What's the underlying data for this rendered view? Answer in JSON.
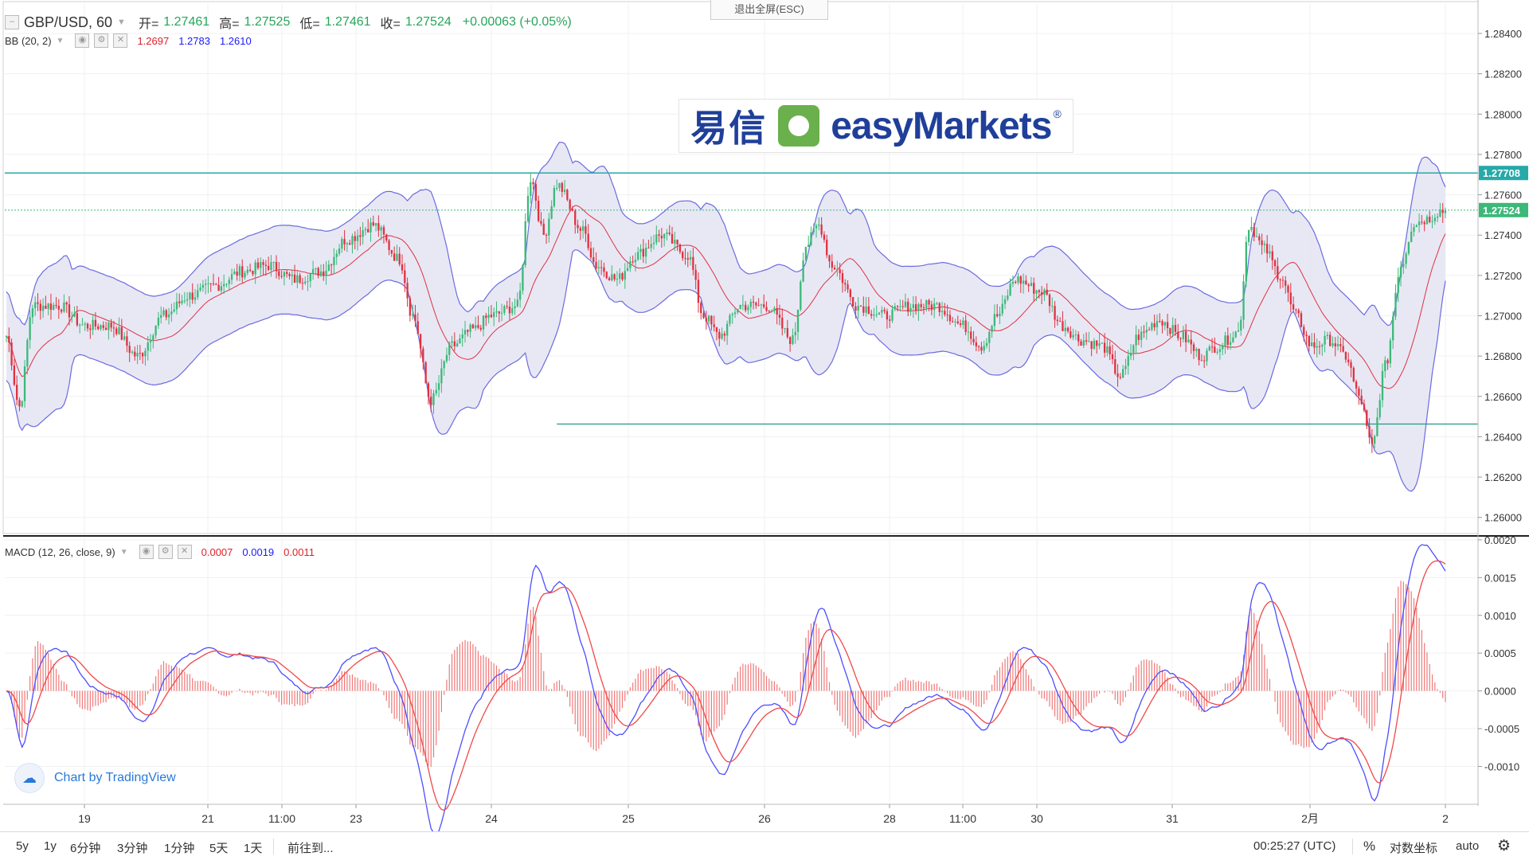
{
  "header": {
    "symbol": "GBP/USD, 60",
    "open_label": "开=",
    "open_value": "1.27461",
    "high_label": "高=",
    "high_value": "1.27525",
    "low_label": "低=",
    "low_value": "1.27461",
    "close_label": "收=",
    "close_value": "1.27524",
    "change": "+0.00063 (+0.05%)",
    "fullscreen_exit": "退出全屏(ESC)"
  },
  "bb_legend": {
    "label": "BB (20, 2)",
    "middle": "1.2697",
    "upper": "1.2783",
    "lower": "1.2610"
  },
  "macd_legend": {
    "label": "MACD (12, 26, close, 9)",
    "histogram": "0.0007",
    "macd": "0.0019",
    "signal": "0.0011"
  },
  "logo": {
    "chinese": "易信",
    "english": "easyMarkets",
    "registered": "®"
  },
  "tradingview": {
    "text": "Chart by TradingView"
  },
  "price_labels": {
    "resistance": "1.27708",
    "current": "1.27524"
  },
  "bottom_bar": {
    "timeframes": [
      "5y",
      "1y",
      "6分钟",
      "3分钟",
      "1分钟",
      "5天",
      "1天"
    ],
    "goto": "前往到...",
    "clock": "00:25:27 (UTC)",
    "percent": "%",
    "log": "对数坐标",
    "auto": "auto",
    "settings_icon": "gear-icon"
  },
  "colors": {
    "up": "#3cb878",
    "down": "#e0313f",
    "bb_band": "#6b6be0",
    "bb_fill": "#e4e4f3",
    "bb_mid": "#e0313f",
    "macd_line": "#4d4dff",
    "signal_line": "#f04848",
    "hist": "#f07878",
    "hline": "#26a9a9"
  },
  "chart_data": [
    {
      "type": "candlestick",
      "series": [
        {
          "name": "GBP/USD"
        }
      ],
      "x_ticks": [
        "19",
        "21",
        "11:00",
        "23",
        "24",
        "25",
        "26",
        "28",
        "11:00",
        "30",
        "31",
        "2月",
        "2"
      ],
      "y_ticks": [
        1.26,
        1.262,
        1.264,
        1.266,
        1.268,
        1.27,
        1.272,
        1.274,
        1.276,
        1.278,
        1.28,
        1.282,
        1.284
      ],
      "ylim": [
        1.2592,
        1.2855
      ],
      "hlines": [
        1.27708,
        1.27524,
        1.26463
      ],
      "ohlc_keypoints": [
        [
          0,
          1.269
        ],
        [
          5,
          1.2655
        ],
        [
          10,
          1.2705
        ],
        [
          20,
          1.2705
        ],
        [
          30,
          1.2695
        ],
        [
          40,
          1.2695
        ],
        [
          50,
          1.268
        ],
        [
          60,
          1.27
        ],
        [
          70,
          1.271
        ],
        [
          80,
          1.2715
        ],
        [
          90,
          1.2722
        ],
        [
          100,
          1.2725
        ],
        [
          110,
          1.2718
        ],
        [
          120,
          1.2722
        ],
        [
          130,
          1.2738
        ],
        [
          140,
          1.2745
        ],
        [
          150,
          1.2728
        ],
        [
          155,
          1.27
        ],
        [
          162,
          1.2658
        ],
        [
          170,
          1.2685
        ],
        [
          178,
          1.2693
        ],
        [
          185,
          1.27
        ],
        [
          195,
          1.2705
        ],
        [
          200,
          1.2768
        ],
        [
          205,
          1.274
        ],
        [
          210,
          1.2765
        ],
        [
          220,
          1.2742
        ],
        [
          225,
          1.2725
        ],
        [
          233,
          1.2718
        ],
        [
          240,
          1.273
        ],
        [
          250,
          1.274
        ],
        [
          260,
          1.273
        ],
        [
          266,
          1.27
        ],
        [
          272,
          1.269
        ],
        [
          280,
          1.2705
        ],
        [
          290,
          1.2705
        ],
        [
          300,
          1.2688
        ],
        [
          305,
          1.2735
        ],
        [
          310,
          1.2745
        ],
        [
          315,
          1.2725
        ],
        [
          325,
          1.2705
        ],
        [
          335,
          1.27
        ],
        [
          345,
          1.2705
        ],
        [
          355,
          1.2705
        ],
        [
          365,
          1.2695
        ],
        [
          372,
          1.2685
        ],
        [
          378,
          1.27
        ],
        [
          385,
          1.2718
        ],
        [
          395,
          1.2712
        ],
        [
          403,
          1.2695
        ],
        [
          410,
          1.2688
        ],
        [
          418,
          1.2685
        ],
        [
          425,
          1.267
        ],
        [
          432,
          1.269
        ],
        [
          440,
          1.2698
        ],
        [
          448,
          1.269
        ],
        [
          456,
          1.268
        ],
        [
          462,
          1.2685
        ],
        [
          470,
          1.2692
        ],
        [
          474,
          1.2745
        ],
        [
          480,
          1.2733
        ],
        [
          486,
          1.272
        ],
        [
          492,
          1.27
        ],
        [
          498,
          1.2685
        ],
        [
          505,
          1.2688
        ],
        [
          511,
          1.268
        ],
        [
          516,
          1.266
        ],
        [
          521,
          1.2635
        ],
        [
          526,
          1.2675
        ],
        [
          532,
          1.2725
        ],
        [
          537,
          1.2746
        ],
        [
          542,
          1.2748
        ],
        [
          547,
          1.2752
        ]
      ]
    },
    {
      "type": "line",
      "title": "MACD (12, 26, close, 9)",
      "y_ticks": [
        -0.001,
        -0.0005,
        0.0,
        0.0005,
        0.001,
        0.0015,
        0.002
      ],
      "ylim": [
        -0.00148,
        0.00202
      ],
      "last_values": {
        "histogram": 0.0007,
        "macd": 0.0019,
        "signal": 0.0011
      }
    }
  ]
}
